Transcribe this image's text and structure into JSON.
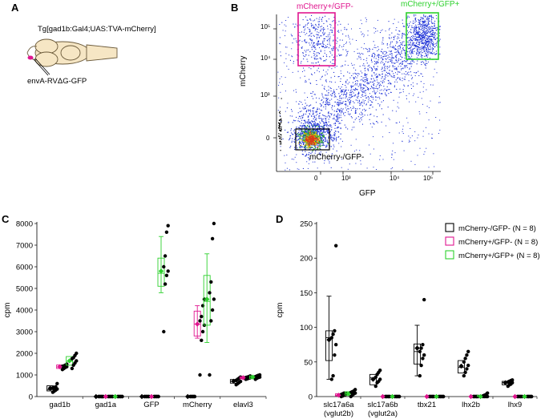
{
  "panels": {
    "a": {
      "letter": "A",
      "transgene_label": "Tg[gad1b:Gal4;UAS:TVA-mCherry]",
      "virus_label": "envA-RVΔG-GFP"
    },
    "b": {
      "letter": "B",
      "gate_magenta": "mCherry+/GFP-",
      "gate_green": "mCherry+/GFP+",
      "gate_black": "mCherry-/GFP-",
      "xlabel": "GFP",
      "ylabel": "mCherry",
      "x_ticks": [
        "0",
        "10³",
        "10⁴",
        "10⁵"
      ],
      "y_ticks": [
        "0",
        "10³",
        "10⁴",
        "10⁵"
      ]
    },
    "c": {
      "letter": "C"
    },
    "d": {
      "letter": "D"
    }
  },
  "colors": {
    "black_group": "#000000",
    "magenta_group": "#e0158f",
    "green_group": "#2ed12e",
    "flow_blue": "#1b2fd6"
  },
  "chart_data": [
    {
      "id": "panel-c",
      "type": "box",
      "ylabel": "cpm",
      "ylim": [
        0,
        8000
      ],
      "yticks": [
        0,
        1000,
        2000,
        3000,
        4000,
        5000,
        6000,
        7000,
        8000
      ],
      "categories": [
        "gad1b",
        "gad1a",
        "GFP",
        "mCherry",
        "elavl3"
      ],
      "series": [
        {
          "group": "black",
          "points": [
            [
              200,
              250,
              300,
              350,
              400,
              420,
              450,
              600
            ],
            [
              0,
              0,
              0,
              0,
              0,
              0,
              0,
              0
            ],
            [
              0,
              0,
              0,
              0,
              0,
              0,
              0,
              0
            ],
            [
              0,
              0,
              0,
              0,
              0,
              0,
              0,
              0
            ],
            [
              550,
              600,
              650,
              700,
              750,
              800,
              850,
              900
            ]
          ],
          "mean": [
            380,
            0,
            0,
            0,
            710
          ],
          "box": [
            [
              260,
              320,
              500
            ],
            [
              0,
              0,
              0
            ],
            [
              0,
              0,
              0
            ],
            [
              0,
              0,
              0
            ],
            [
              620,
              700,
              790
            ]
          ]
        },
        {
          "group": "magenta",
          "points": [
            [
              1250,
              1300,
              1350,
              1380,
              1400,
              1420,
              1450,
              1500
            ],
            [
              0,
              0,
              0,
              0,
              0,
              0,
              0,
              0
            ],
            [
              0,
              0,
              0,
              0,
              0,
              0,
              0,
              0
            ],
            [
              1000,
              2600,
              3000,
              3300,
              3500,
              3700,
              4200,
              4500
            ],
            [
              800,
              820,
              850,
              870,
              880,
              900,
              920,
              950
            ]
          ],
          "mean": [
            1380,
            0,
            0,
            3350,
            870
          ],
          "box": [
            [
              1300,
              1370,
              1460
            ],
            [
              0,
              0,
              0
            ],
            [
              0,
              0,
              0
            ],
            [
              2800,
              3350,
              3950
            ],
            [
              820,
              870,
              920
            ]
          ]
        },
        {
          "group": "green",
          "points": [
            [
              1300,
              1450,
              1550,
              1650,
              1750,
              1800,
              1900,
              2000
            ],
            [
              0,
              0,
              0,
              0,
              0,
              0,
              0,
              0
            ],
            [
              3000,
              5200,
              5600,
              5800,
              6000,
              6500,
              7600,
              7900
            ],
            [
              1000,
              3500,
              4000,
              4500,
              4800,
              5300,
              7300,
              8000
            ],
            [
              800,
              850,
              880,
              900,
              920,
              950,
              980,
              1000
            ]
          ],
          "mean": [
            1650,
            0,
            5800,
            4500,
            900
          ],
          "box": [
            [
              1450,
              1630,
              1850
            ],
            [
              0,
              0,
              0
            ],
            [
              5100,
              5700,
              6400
            ],
            [
              3300,
              4400,
              5600
            ],
            [
              830,
              900,
              960
            ]
          ]
        }
      ],
      "whiskers": [
        {
          "group": "magenta",
          "category": "mCherry",
          "range": [
            2700,
            4200
          ]
        },
        {
          "group": "green",
          "category": "GFP",
          "range": [
            4800,
            7400
          ]
        },
        {
          "group": "green",
          "category": "mCherry",
          "range": [
            2500,
            6600
          ]
        }
      ]
    },
    {
      "id": "panel-d",
      "type": "box",
      "ylabel": "cpm",
      "ylim": [
        0,
        250
      ],
      "yticks": [
        0,
        50,
        100,
        150,
        200,
        250
      ],
      "categories": [
        "slc17a6a\n(vglut2b)",
        "slc17a6b\n(vglut2a)",
        "tbx21",
        "lhx2b",
        "lhx9"
      ],
      "legend": [
        "mCherry-/GFP- (N = 8)",
        "mCherry+/GFP- (N = 8)",
        "mCherry+/GFP+ (N = 8)"
      ],
      "series": [
        {
          "group": "black",
          "points": [
            [
              25,
              30,
              60,
              75,
              85,
              90,
              95,
              218
            ],
            [
              15,
              20,
              22,
              25,
              28,
              32,
              35,
              38
            ],
            [
              30,
              45,
              55,
              60,
              65,
              70,
              75,
              140
            ],
            [
              30,
              35,
              40,
              45,
              50,
              55,
              60,
              65
            ],
            [
              15,
              17,
              18,
              20,
              21,
              22,
              23,
              24
            ]
          ],
          "mean": [
            82,
            25,
            70,
            44,
            20
          ],
          "box": [
            [
              52,
              85,
              95
            ],
            [
              17,
              27,
              32
            ],
            [
              47,
              65,
              76
            ],
            [
              34,
              42,
              52
            ],
            [
              17,
              20,
              22
            ]
          ]
        },
        {
          "group": "magenta",
          "points": [
            [
              0,
              1,
              2,
              3,
              3,
              4,
              5,
              5
            ],
            [
              0,
              0,
              0,
              0,
              0,
              0,
              0,
              0
            ],
            [
              0,
              0,
              0,
              0,
              0,
              0,
              0,
              0
            ],
            [
              0,
              0,
              0,
              0,
              0,
              0,
              0,
              0
            ],
            [
              0,
              0,
              0,
              0,
              0,
              0,
              0,
              0
            ]
          ],
          "mean": [
            2,
            0,
            0,
            0,
            0
          ],
          "box": [
            [
              1,
              2,
              4
            ],
            [
              0,
              0,
              0
            ],
            [
              0,
              0,
              0
            ],
            [
              0,
              0,
              0
            ],
            [
              0,
              0,
              0
            ]
          ]
        },
        {
          "group": "green",
          "points": [
            [
              0,
              2,
              4,
              5,
              6,
              7,
              8,
              10
            ],
            [
              0,
              0,
              0,
              0,
              0,
              0,
              0,
              0
            ],
            [
              0,
              0,
              0,
              0,
              0,
              0,
              0,
              0
            ],
            [
              0,
              0,
              0,
              0,
              1,
              2,
              3,
              5
            ],
            [
              0,
              0,
              0,
              0,
              0,
              0,
              0,
              0
            ]
          ],
          "mean": [
            4,
            0,
            0,
            0,
            0
          ],
          "box": [
            [
              2,
              5,
              7
            ],
            [
              0,
              0,
              0
            ],
            [
              0,
              0,
              0
            ],
            [
              0,
              0,
              2
            ],
            [
              0,
              0,
              0
            ]
          ]
        }
      ],
      "whiskers": [
        {
          "group": "black",
          "category": "slc17a6a\n(vglut2b)",
          "range": [
            25,
            145
          ]
        },
        {
          "group": "black",
          "category": "tbx21",
          "range": [
            30,
            103
          ]
        }
      ]
    }
  ]
}
